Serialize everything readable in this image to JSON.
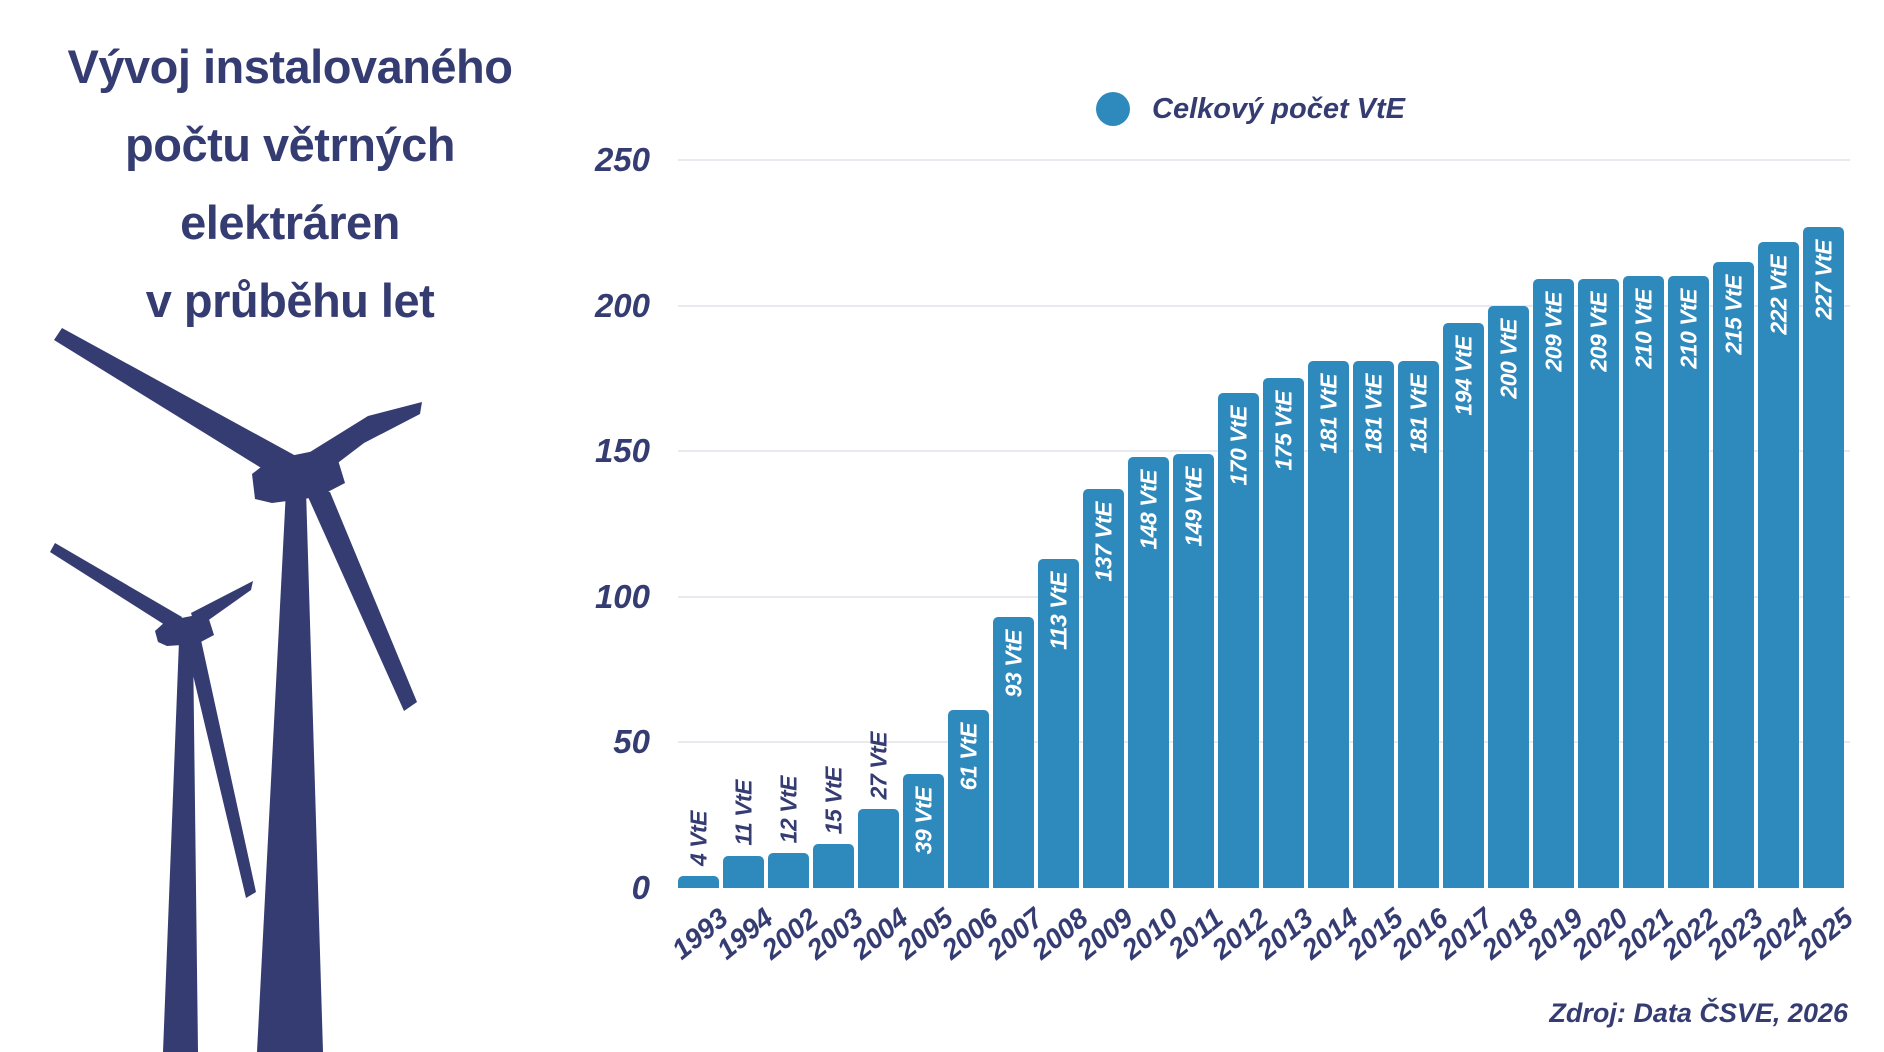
{
  "title": {
    "lines": [
      "Vývoj instalovaného",
      "počtu větrných",
      "elektráren",
      "v průběhu let"
    ]
  },
  "legend": {
    "label": "Celkový počet VtE"
  },
  "source": {
    "text": "Zdroj: Data ČSVE, 2026"
  },
  "colors": {
    "navy": "#353c72",
    "bar_blue": "#2e8abc",
    "gridline": "#e9e9f0",
    "bar_label_inside": "#ffffff"
  },
  "illustration": {
    "name": "wind-turbines"
  },
  "chart_data": {
    "type": "bar",
    "title": "Vývoj instalovaného počtu větrných elektráren v průběhu let",
    "categories": [
      "1993",
      "1994",
      "2002",
      "2003",
      "2004",
      "2005",
      "2006",
      "2007",
      "2008",
      "2009",
      "2010",
      "2011",
      "2012",
      "2013",
      "2014",
      "2015",
      "2016",
      "2017",
      "2018",
      "2019",
      "2020",
      "2021",
      "2022",
      "2023",
      "2024",
      "2025"
    ],
    "series": [
      {
        "name": "Celkový počet VtE",
        "values": [
          4,
          11,
          12,
          15,
          27,
          39,
          61,
          93,
          113,
          137,
          148,
          149,
          170,
          175,
          181,
          181,
          181,
          194,
          200,
          209,
          209,
          210,
          210,
          215,
          222,
          227
        ]
      }
    ],
    "value_label_suffix": " VtE",
    "yticks": [
      0,
      50,
      100,
      150,
      200,
      250
    ],
    "ylim": [
      0,
      250
    ],
    "grid": "horizontal",
    "legend_position": "top",
    "inside_label_min_value": 39,
    "xlabel": "",
    "ylabel": ""
  }
}
